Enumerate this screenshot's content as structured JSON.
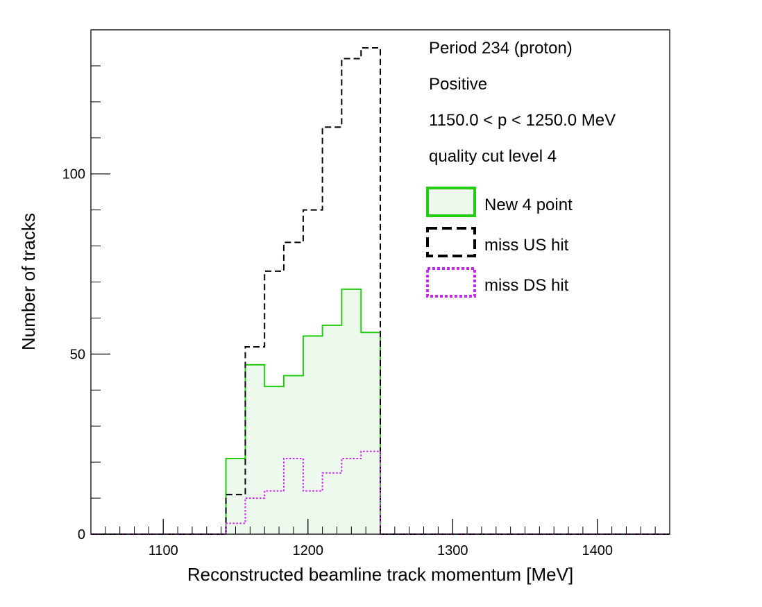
{
  "chart_data": {
    "type": "histogram",
    "xlabel": "Reconstructed beamline track momentum [MeV]",
    "ylabel": "Number of tracks",
    "xlim": [
      1050,
      1450
    ],
    "ylim": [
      0,
      140
    ],
    "x_ticks": [
      1100,
      1200,
      1300,
      1400
    ],
    "y_ticks": [
      0,
      50,
      100
    ],
    "bin_edges": [
      1143.3,
      1156.7,
      1170.0,
      1183.3,
      1196.7,
      1210.0,
      1223.3,
      1236.7,
      1250.0
    ],
    "series": [
      {
        "name": "New 4 point",
        "color": "#22cc11",
        "fill": "#eef9ee",
        "style": "solid",
        "values": [
          21,
          47,
          41,
          44,
          55,
          58,
          68,
          56
        ]
      },
      {
        "name": "miss US hit",
        "color": "#000000",
        "style": "dashed",
        "values": [
          11,
          52,
          73,
          81,
          90,
          113,
          132,
          135
        ]
      },
      {
        "name": "miss DS hit",
        "color": "#cc22ee",
        "style": "dotted",
        "values": [
          3,
          10,
          12,
          21,
          12,
          17,
          21,
          23
        ]
      }
    ],
    "annotations": [
      "Period 234 (proton)",
      "Positive",
      "1150.0 < p < 1250.0 MeV",
      "quality cut level 4"
    ],
    "legend_position": "top-right",
    "grid": false
  }
}
